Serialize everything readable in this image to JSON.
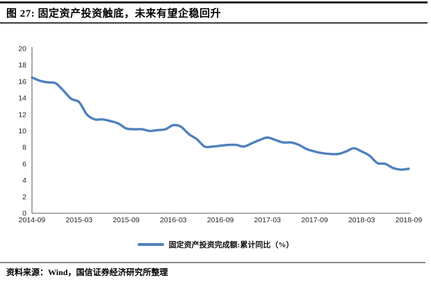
{
  "figure": {
    "title": "图 27: 固定资产投资触底，未来有望企稳回升",
    "source": "资料来源：Wind，国信证券经济研究所整理"
  },
  "legend": {
    "label": "固定资产投资完成额:累计同比（%）"
  },
  "colors": {
    "line": "#4F81BD",
    "axis": "#808080",
    "tick_text": "#262626"
  },
  "chart_data": {
    "type": "line",
    "title": "固定资产投资触底，未来有望企稳回升",
    "xlabel": "",
    "ylabel": "",
    "ylim": [
      0,
      20
    ],
    "yticks": [
      0,
      2,
      4,
      6,
      8,
      10,
      12,
      14,
      16,
      18,
      20
    ],
    "grid": false,
    "legend_position": "bottom",
    "line_smoothed": true,
    "x": [
      "2014-09",
      "2014-10",
      "2014-11",
      "2014-12",
      "2015-01",
      "2015-02",
      "2015-03",
      "2015-04",
      "2015-05",
      "2015-06",
      "2015-07",
      "2015-08",
      "2015-09",
      "2015-10",
      "2015-11",
      "2015-12",
      "2016-01",
      "2016-02",
      "2016-03",
      "2016-04",
      "2016-05",
      "2016-06",
      "2016-07",
      "2016-08",
      "2016-09",
      "2016-10",
      "2016-11",
      "2016-12",
      "2017-01",
      "2017-02",
      "2017-03",
      "2017-04",
      "2017-05",
      "2017-06",
      "2017-07",
      "2017-08",
      "2017-09",
      "2017-10",
      "2017-11",
      "2017-12",
      "2018-01",
      "2018-02",
      "2018-03",
      "2018-04",
      "2018-05",
      "2018-06",
      "2018-07",
      "2018-08",
      "2018-09"
    ],
    "xtick_labels": [
      "2014-09",
      "2015-03",
      "2015-09",
      "2016-03",
      "2016-09",
      "2017-03",
      "2017-09",
      "2018-03",
      "2018-09"
    ],
    "xtick_positions": [
      0,
      6,
      12,
      18,
      24,
      30,
      36,
      42,
      48
    ],
    "series": [
      {
        "name": "固定资产投资完成额:累计同比（%）",
        "color": "#4F81BD",
        "values": [
          16.5,
          16.1,
          15.9,
          15.8,
          14.9,
          13.9,
          13.5,
          12.0,
          11.4,
          11.4,
          11.2,
          10.9,
          10.3,
          10.2,
          10.2,
          10.0,
          10.1,
          10.2,
          10.7,
          10.5,
          9.6,
          9.0,
          8.1,
          8.1,
          8.2,
          8.3,
          8.3,
          8.1,
          8.5,
          8.9,
          9.2,
          8.9,
          8.6,
          8.6,
          8.3,
          7.8,
          7.5,
          7.3,
          7.2,
          7.2,
          7.5,
          7.9,
          7.5,
          7.0,
          6.1,
          6.0,
          5.5,
          5.3,
          5.4
        ]
      }
    ]
  }
}
